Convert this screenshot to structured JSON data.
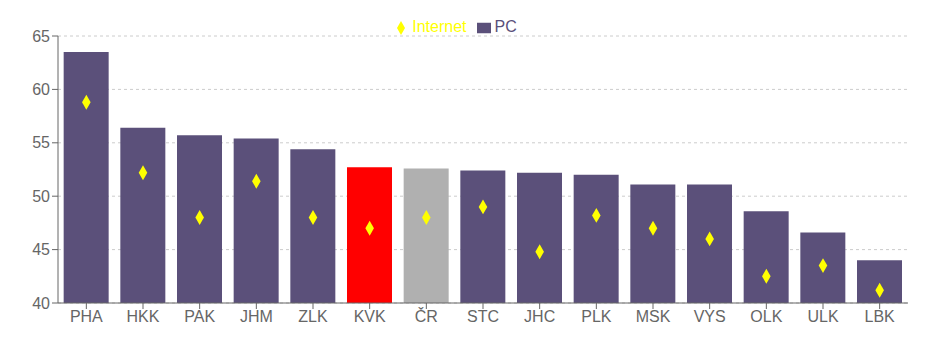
{
  "chart_data": {
    "type": "bar",
    "categories": [
      "PHA",
      "HKK",
      "PAK",
      "JHM",
      "ZLK",
      "KVK",
      "ČR",
      "STC",
      "JHC",
      "PLK",
      "MSK",
      "VYS",
      "OLK",
      "ULK",
      "LBK"
    ],
    "series": [
      {
        "name": "PC",
        "type": "bar",
        "color": "#5b507a",
        "colors": [
          "#5b507a",
          "#5b507a",
          "#5b507a",
          "#5b507a",
          "#5b507a",
          "#ff0000",
          "#b0b0b0",
          "#5b507a",
          "#5b507a",
          "#5b507a",
          "#5b507a",
          "#5b507a",
          "#5b507a",
          "#5b507a",
          "#5b507a"
        ],
        "values": [
          63.5,
          56.4,
          55.7,
          55.4,
          54.4,
          52.7,
          52.6,
          52.4,
          52.2,
          52.0,
          51.1,
          51.1,
          48.6,
          46.6,
          44.0
        ]
      },
      {
        "name": "Internet",
        "type": "scatter",
        "marker": "diamond",
        "color": "#ffff00",
        "values": [
          58.8,
          52.2,
          48.0,
          51.4,
          48.0,
          47.0,
          48.0,
          49.0,
          44.8,
          48.2,
          47.0,
          46.0,
          42.5,
          43.5,
          41.2
        ]
      }
    ],
    "ylim": [
      40,
      65
    ],
    "yticks": [
      40,
      45,
      50,
      55,
      60,
      65
    ],
    "grid": true,
    "legend": "top"
  }
}
